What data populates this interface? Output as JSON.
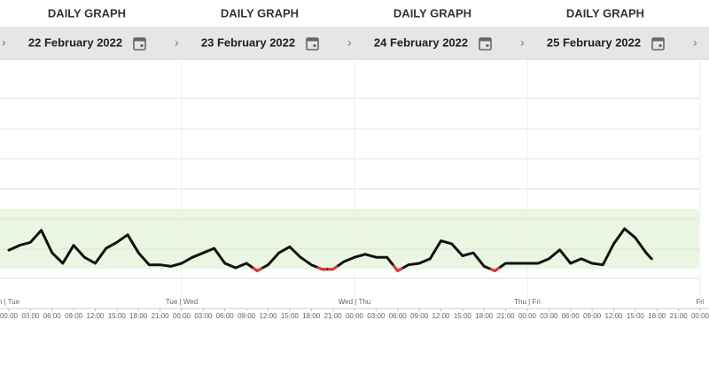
{
  "panels": [
    {
      "title": "DAILY GRAPH",
      "date": "22 February 2022"
    },
    {
      "title": "DAILY GRAPH",
      "date": "23 February 2022"
    },
    {
      "title": "DAILY GRAPH",
      "date": "24 February 2022"
    },
    {
      "title": "DAILY GRAPH",
      "date": "25 February 2022"
    }
  ],
  "chart_data": {
    "type": "line",
    "day_labels": [
      "n | Tue",
      "Tue | Wed",
      "Wed | Thu",
      "Thu | Fri",
      "Fri"
    ],
    "hour_ticks": [
      "00:00",
      "03:00",
      "06:00",
      "09:00",
      "12:00",
      "15:00",
      "18:00",
      "21:00"
    ],
    "ylim": [
      0,
      6.6
    ],
    "target_range": [
      0.32,
      2.3
    ],
    "target_color": "#eaf5e2",
    "low_color": "#e03a3a",
    "series": [
      {
        "color": "#111111",
        "x": [
          "Tue 00:00",
          "Tue 01:30",
          "Tue 03:00",
          "Tue 04:30",
          "Tue 06:00",
          "Tue 07:30",
          "Tue 09:00",
          "Tue 10:30",
          "Tue 12:00",
          "Tue 13:30",
          "Tue 15:00",
          "Tue 16:30",
          "Tue 18:00",
          "Tue 19:30",
          "Tue 21:00",
          "Tue 22:30",
          "Wed 00:00",
          "Wed 01:30",
          "Wed 03:00",
          "Wed 04:30",
          "Wed 06:00",
          "Wed 07:30",
          "Wed 09:00",
          "Wed 10:30",
          "Wed 12:00",
          "Wed 13:30",
          "Wed 15:00",
          "Wed 16:30",
          "Wed 18:00",
          "Wed 19:30",
          "Wed 21:00",
          "Wed 22:30",
          "Thu 00:00",
          "Thu 01:30",
          "Thu 03:00",
          "Thu 04:30",
          "Thu 06:00",
          "Thu 07:30",
          "Thu 09:00",
          "Thu 10:30",
          "Thu 12:00",
          "Thu 13:30",
          "Thu 15:00",
          "Thu 16:30",
          "Thu 18:00",
          "Thu 19:30",
          "Thu 21:00",
          "Thu 22:30",
          "Fri 00:00",
          "Fri 01:30",
          "Fri 03:00",
          "Fri 04:30",
          "Fri 06:00",
          "Fri 07:30",
          "Fri 09:00",
          "Fri 10:30",
          "Fri 12:00",
          "Fri 13:30",
          "Fri 15:00",
          "Fri 16:30",
          "Fri 17:15"
        ],
        "values": [
          0.94,
          1.1,
          1.2,
          1.6,
          0.85,
          0.5,
          1.1,
          0.7,
          0.5,
          1.0,
          1.2,
          1.45,
          0.85,
          0.45,
          0.45,
          0.4,
          0.5,
          0.7,
          0.85,
          1.0,
          0.5,
          0.35,
          0.5,
          0.25,
          0.45,
          0.85,
          1.05,
          0.7,
          0.45,
          0.3,
          0.3,
          0.55,
          0.7,
          0.8,
          0.7,
          0.7,
          0.25,
          0.45,
          0.5,
          0.65,
          1.25,
          1.15,
          0.75,
          0.85,
          0.4,
          0.25,
          0.5,
          0.5,
          0.5,
          0.5,
          0.65,
          0.95,
          0.5,
          0.65,
          0.5,
          0.45,
          1.15,
          1.65,
          1.35,
          0.85,
          0.65
        ]
      }
    ]
  }
}
